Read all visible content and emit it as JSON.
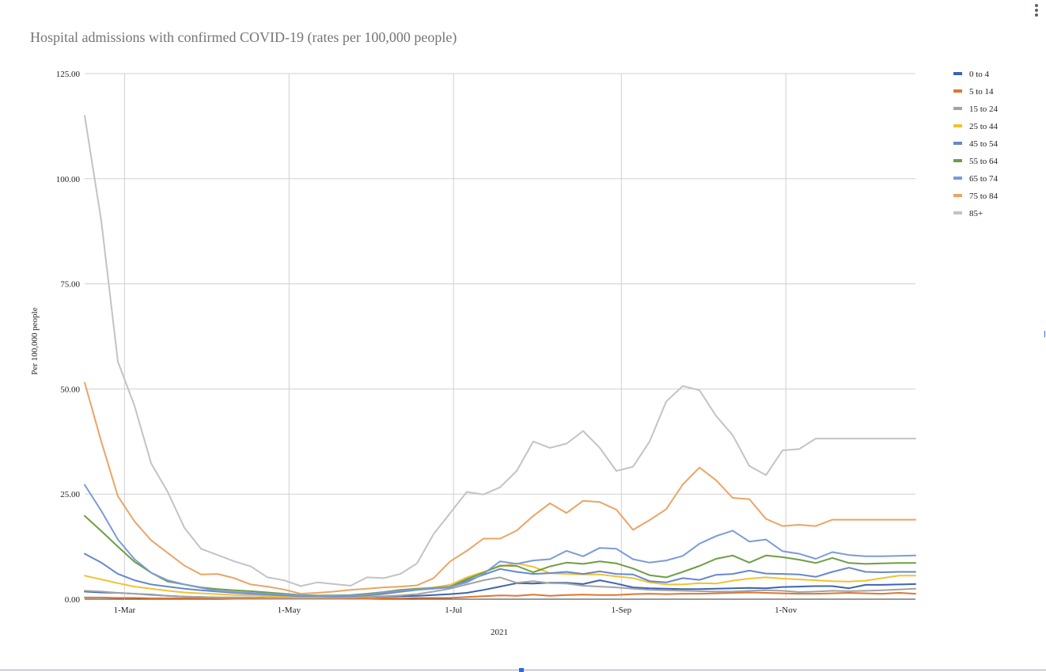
{
  "menu": {
    "icon": "more-vert-icon"
  },
  "chart_data": {
    "type": "line",
    "title": "Hospital admissions with confirmed COVID-19 (rates per 100,000 people)",
    "xlabel": "2021",
    "ylabel": "Per 100,000 people",
    "ylim": [
      0,
      125
    ],
    "yticks": [
      "0.00",
      "25.00",
      "50.00",
      "75.00",
      "100.00",
      "125.00"
    ],
    "xlim": [
      0,
      50
    ],
    "xticks": [
      {
        "label": "1-Mar",
        "x": 2.4
      },
      {
        "label": "1-May",
        "x": 12.3
      },
      {
        "label": "1-Jul",
        "x": 22.2
      },
      {
        "label": "1-Sep",
        "x": 32.3
      },
      {
        "label": "1-Nov",
        "x": 42.2
      }
    ],
    "grid": true,
    "legend_position": "right",
    "x": [
      0,
      1,
      2,
      3,
      4,
      5,
      6,
      7,
      8,
      9,
      10,
      11,
      12,
      13,
      14,
      15,
      16,
      17,
      18,
      19,
      20,
      21,
      22,
      23,
      24,
      25,
      26,
      27,
      28,
      29,
      30,
      31,
      32,
      33,
      34,
      35,
      36,
      37,
      38,
      39,
      40,
      41,
      42,
      43,
      44,
      45,
      46,
      47,
      48,
      49,
      50
    ],
    "series": [
      {
        "name": "0 to 4",
        "color": "#3c64b1",
        "values": [
          1.8,
          1.6,
          1.5,
          1.3,
          1.1,
          0.8,
          0.6,
          0.5,
          0.4,
          0.4,
          0.4,
          0.3,
          0.3,
          0.3,
          0.3,
          0.3,
          0.4,
          0.5,
          0.6,
          0.7,
          0.8,
          1.0,
          1.2,
          1.5,
          2.2,
          3.0,
          3.8,
          3.7,
          3.9,
          3.9,
          3.6,
          4.5,
          3.7,
          2.8,
          2.6,
          2.5,
          2.4,
          2.4,
          2.5,
          2.6,
          2.7,
          2.6,
          2.9,
          3.0,
          3.1,
          3.1,
          2.6,
          3.4,
          3.4,
          3.5,
          3.6
        ]
      },
      {
        "name": "5 to 14",
        "color": "#dd7733",
        "values": [
          0.4,
          0.4,
          0.3,
          0.3,
          0.2,
          0.2,
          0.2,
          0.2,
          0.2,
          0.1,
          0.1,
          0.1,
          0.1,
          0.1,
          0.1,
          0.1,
          0.1,
          0.1,
          0.2,
          0.2,
          0.3,
          0.3,
          0.3,
          0.5,
          0.7,
          0.9,
          0.8,
          1.1,
          0.8,
          1.0,
          1.1,
          1.0,
          1.0,
          1.2,
          1.3,
          1.2,
          1.3,
          1.3,
          1.4,
          1.5,
          1.6,
          1.5,
          1.4,
          1.3,
          1.3,
          1.4,
          1.5,
          1.4,
          1.3,
          1.5,
          1.3
        ]
      },
      {
        "name": "15 to 24",
        "color": "#a3a3a3",
        "values": [
          2.0,
          1.8,
          1.5,
          1.3,
          1.0,
          0.8,
          0.6,
          0.5,
          0.4,
          0.4,
          0.4,
          0.3,
          0.3,
          0.3,
          0.3,
          0.3,
          0.4,
          0.5,
          0.7,
          0.9,
          1.2,
          1.8,
          2.5,
          3.5,
          4.5,
          5.2,
          3.9,
          4.3,
          3.8,
          3.7,
          3.2,
          3.0,
          2.8,
          2.5,
          2.2,
          2.1,
          2.0,
          1.9,
          1.8,
          1.8,
          2.0,
          2.1,
          2.0,
          1.7,
          1.8,
          2.0,
          1.9,
          2.0,
          2.1,
          2.3,
          2.5
        ]
      },
      {
        "name": "25 to 44",
        "color": "#f2c230",
        "values": [
          5.6,
          4.7,
          3.8,
          3.0,
          2.5,
          2.0,
          1.6,
          1.4,
          1.2,
          1.0,
          0.9,
          0.7,
          0.6,
          0.5,
          0.5,
          0.5,
          0.6,
          0.8,
          1.2,
          1.7,
          2.2,
          2.8,
          3.4,
          5.2,
          6.5,
          7.8,
          8.5,
          7.7,
          6.2,
          6.0,
          5.9,
          5.9,
          5.4,
          5.0,
          4.0,
          3.5,
          3.5,
          3.8,
          3.7,
          4.4,
          4.9,
          5.2,
          4.9,
          4.7,
          4.5,
          4.3,
          4.2,
          4.4,
          5.0,
          5.6,
          5.6
        ]
      },
      {
        "name": "45 to 54",
        "color": "#6688cc",
        "values": [
          10.8,
          8.7,
          6.0,
          4.5,
          3.5,
          3.0,
          2.5,
          2.1,
          1.8,
          1.5,
          1.3,
          1.1,
          0.9,
          0.7,
          0.7,
          0.6,
          0.7,
          0.9,
          1.3,
          1.8,
          2.2,
          2.5,
          2.8,
          4.4,
          5.8,
          7.2,
          6.5,
          6.0,
          6.2,
          6.5,
          6.0,
          6.6,
          6.0,
          5.9,
          4.3,
          4.0,
          5.0,
          4.6,
          5.8,
          6.0,
          6.8,
          6.1,
          6.0,
          5.9,
          5.3,
          6.5,
          7.5,
          6.5,
          6.4,
          6.5,
          6.5
        ]
      },
      {
        "name": "55 to 64",
        "color": "#6e9e45",
        "values": [
          19.8,
          16.2,
          12.5,
          8.9,
          6.3,
          4.2,
          3.5,
          2.8,
          2.4,
          2.1,
          1.9,
          1.6,
          1.3,
          1.0,
          0.9,
          0.9,
          1.0,
          1.3,
          1.7,
          2.2,
          2.5,
          2.7,
          3.0,
          4.8,
          6.3,
          8.0,
          7.9,
          6.4,
          7.8,
          8.7,
          8.4,
          9.0,
          8.5,
          7.3,
          5.7,
          5.2,
          6.5,
          7.9,
          9.6,
          10.4,
          8.7,
          10.4,
          10.0,
          9.4,
          8.6,
          9.8,
          8.6,
          8.4,
          8.5,
          8.6,
          8.6
        ]
      },
      {
        "name": "65 to 74",
        "color": "#7b9bd8",
        "values": [
          27.2,
          21.0,
          14.2,
          9.5,
          6.3,
          4.5,
          3.5,
          2.7,
          2.0,
          1.7,
          1.5,
          1.3,
          1.1,
          0.9,
          0.8,
          0.8,
          0.9,
          1.1,
          1.6,
          2.0,
          2.3,
          2.5,
          2.9,
          4.0,
          6.0,
          9.0,
          8.4,
          9.2,
          9.5,
          11.5,
          10.2,
          12.2,
          12.0,
          9.5,
          8.7,
          9.2,
          10.3,
          13.2,
          15.0,
          16.3,
          13.7,
          14.2,
          11.4,
          10.8,
          9.6,
          11.2,
          10.5,
          10.2,
          10.2,
          10.3,
          10.4
        ]
      },
      {
        "name": "75 to 84",
        "color": "#eba466",
        "values": [
          51.5,
          37.5,
          24.5,
          18.5,
          14.0,
          11.0,
          8.0,
          5.9,
          6.0,
          5.0,
          3.5,
          3.0,
          2.3,
          1.3,
          1.5,
          1.8,
          2.2,
          2.5,
          2.8,
          3.0,
          3.3,
          5.0,
          9.0,
          11.5,
          14.4,
          14.4,
          16.3,
          19.8,
          22.8,
          20.5,
          23.4,
          23.1,
          21.3,
          16.5,
          18.8,
          21.4,
          27.3,
          31.3,
          28.3,
          24.1,
          23.8,
          19.1,
          17.4,
          17.7,
          17.4,
          18.9,
          18.9,
          18.9,
          18.9,
          18.9,
          18.9
        ]
      },
      {
        "name": "85+",
        "color": "#c3c3c3",
        "values": [
          115.0,
          90.0,
          56.5,
          46.0,
          32.3,
          25.5,
          17.0,
          12.0,
          10.5,
          9.0,
          7.8,
          5.2,
          4.5,
          3.1,
          4.0,
          3.6,
          3.2,
          5.2,
          5.0,
          6.0,
          8.5,
          15.5,
          20.5,
          25.5,
          24.9,
          26.6,
          30.5,
          37.5,
          36.0,
          37.0,
          40.0,
          36.0,
          30.5,
          31.5,
          37.5,
          47.0,
          50.7,
          49.7,
          43.6,
          39.0,
          31.7,
          29.5,
          35.4,
          35.7,
          38.2,
          38.2,
          38.2,
          38.2,
          38.2,
          38.2,
          38.2
        ]
      }
    ]
  }
}
